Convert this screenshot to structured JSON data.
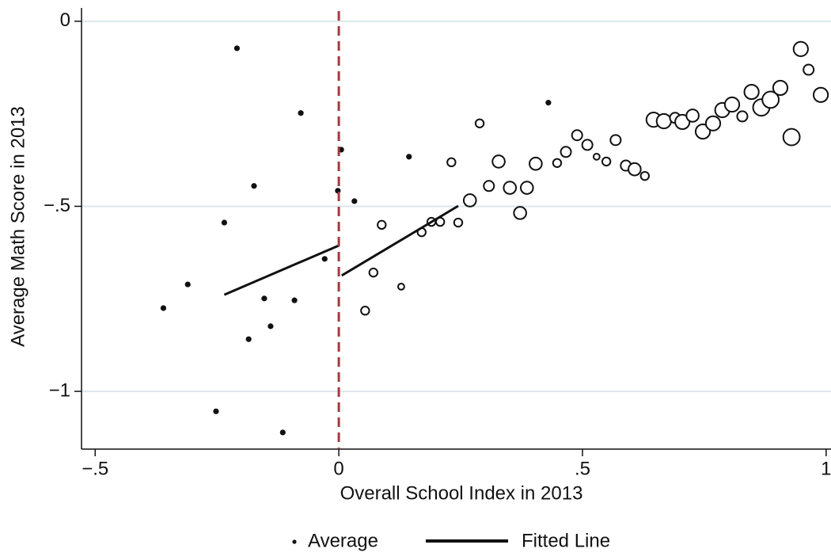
{
  "chart_data": {
    "type": "scatter",
    "xlabel": "Overall School Index in 2013",
    "ylabel": "Average Math Score in 2013",
    "xlim": [
      -0.528,
      1.01
    ],
    "ylim": [
      -1.156,
      0.036
    ],
    "xticks": [
      {
        "value": -0.5,
        "label": "−.5"
      },
      0,
      {
        "value": 0.5,
        "label": ".5"
      },
      1
    ],
    "yticks": [
      0,
      {
        "value": -0.5,
        "label": "−.5"
      },
      {
        "value": -1,
        "label": "−1"
      }
    ],
    "grid": true,
    "grid_color": "#dde6ea",
    "cutoff": 0,
    "cutoff_color": "#a33a3f",
    "series": [
      {
        "name": "Average",
        "color": "#111111",
        "x": [
          -0.36,
          -0.31,
          -0.209,
          -0.235,
          -0.078,
          -0.174,
          -0.153,
          -0.185,
          -0.14,
          -0.091,
          -0.029,
          -0.252,
          -0.115,
          -0.002,
          0.005,
          0.032,
          0.054,
          0.071,
          0.088,
          0.128,
          0.144,
          0.17,
          0.19,
          0.208,
          0.231,
          0.245,
          0.269,
          0.289,
          0.308,
          0.328,
          0.351,
          0.372,
          0.386,
          0.404,
          0.43,
          0.448,
          0.466,
          0.489,
          0.51,
          0.529,
          0.549,
          0.568,
          0.589,
          0.607,
          0.628,
          0.646,
          0.667,
          0.69,
          0.705,
          0.726,
          0.747,
          0.768,
          0.787,
          0.807,
          0.828,
          0.847,
          0.867,
          0.886,
          0.906,
          0.929,
          0.948,
          0.964,
          0.989
        ],
        "values": [
          -0.775,
          -0.711,
          -0.073,
          -0.544,
          -0.248,
          -0.445,
          -0.749,
          -0.859,
          -0.824,
          -0.754,
          -0.642,
          -1.054,
          -1.111,
          -0.458,
          -0.347,
          -0.486,
          -0.782,
          -0.679,
          -0.55,
          -0.717,
          -0.366,
          -0.57,
          -0.542,
          -0.542,
          -0.381,
          -0.544,
          -0.484,
          -0.276,
          -0.445,
          -0.379,
          -0.45,
          -0.518,
          -0.45,
          -0.385,
          -0.22,
          -0.383,
          -0.353,
          -0.308,
          -0.334,
          -0.366,
          -0.379,
          -0.321,
          -0.39,
          -0.4,
          -0.418,
          -0.266,
          -0.27,
          -0.261,
          -0.272,
          -0.255,
          -0.298,
          -0.276,
          -0.24,
          -0.225,
          -0.257,
          -0.191,
          -0.233,
          -0.212,
          -0.18,
          -0.313,
          -0.075,
          -0.131,
          -0.199
        ],
        "sizes": [
          1,
          1,
          1,
          1,
          1,
          1,
          1,
          1,
          1,
          1,
          1,
          1,
          1,
          1,
          1,
          1,
          2,
          2,
          2,
          1.5,
          1,
          2,
          2,
          2,
          2,
          2,
          3,
          2,
          2.5,
          3,
          3,
          3,
          3,
          3,
          1,
          2,
          2.5,
          2.5,
          2.5,
          1.5,
          2,
          2.5,
          2.5,
          3,
          2,
          3.5,
          3.5,
          2.5,
          3.5,
          3,
          3.5,
          3.5,
          3.5,
          3.5,
          2.5,
          3.5,
          4,
          4,
          3.5,
          4,
          3.5,
          2.5,
          3.5
        ]
      },
      {
        "name": "Fitted Line",
        "color": "#111111",
        "x": [
          -0.235,
          0,
          null,
          0.006,
          0.245
        ],
        "values": [
          -0.739,
          -0.606,
          null,
          -0.687,
          -0.499
        ]
      }
    ]
  }
}
